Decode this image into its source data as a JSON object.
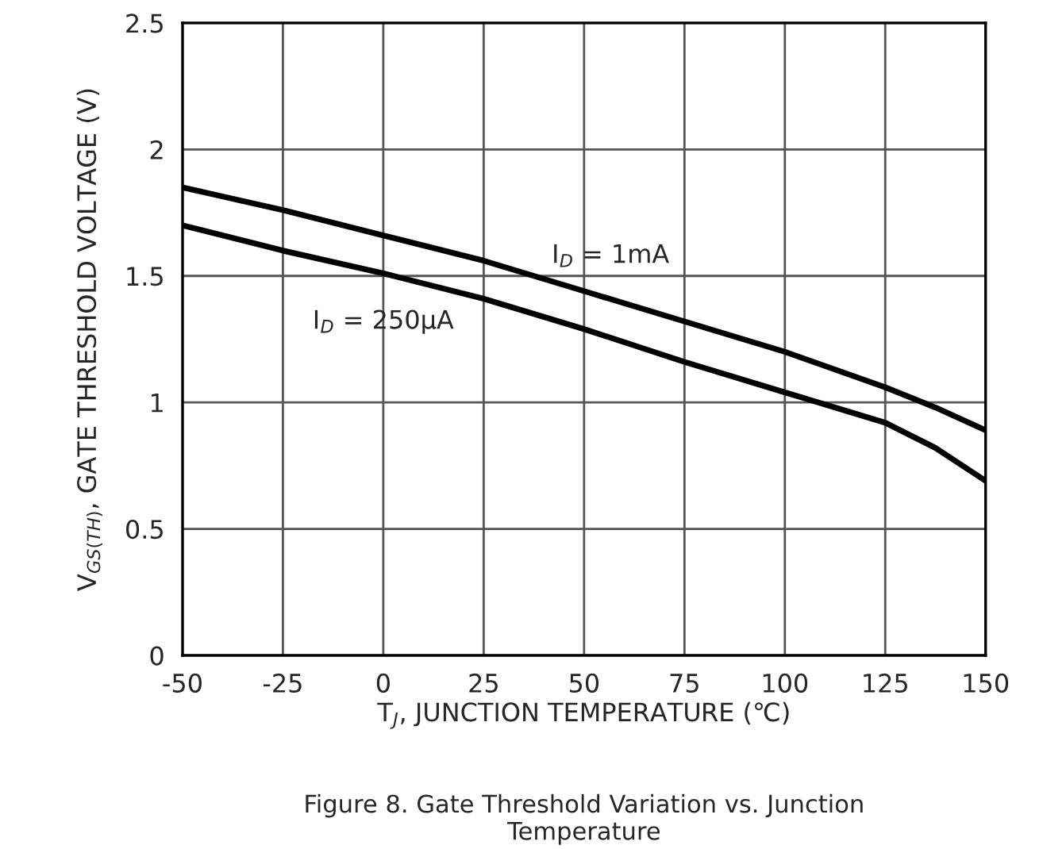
{
  "chart_data": {
    "type": "line",
    "xlabel": "T$_{J}$, JUNCTION TEMPERATURE (℃)",
    "ylabel": "V$_{GS(TH)}$, GATE THRESHOLD VOLTAGE (V)",
    "x": [
      -50,
      -25,
      0,
      25,
      50,
      75,
      100,
      125,
      137.5,
      150
    ],
    "series": [
      {
        "name": "I$_{D}$ = 1mA",
        "color": "#000000",
        "values": [
          1.85,
          1.76,
          1.66,
          1.56,
          1.44,
          1.32,
          1.2,
          1.06,
          0.98,
          0.89
        ]
      },
      {
        "name": "I$_{D}$ = 250µA",
        "color": "#000000",
        "values": [
          1.7,
          1.6,
          1.51,
          1.41,
          1.29,
          1.16,
          1.04,
          0.92,
          0.82,
          0.69
        ]
      }
    ],
    "xlim": [
      -50,
      150
    ],
    "xticks": [
      -50,
      -25,
      0,
      25,
      50,
      75,
      100,
      125,
      150
    ],
    "ylim": [
      0,
      2.5
    ],
    "yticks": [
      0,
      0.5,
      1,
      1.5,
      2,
      2.5
    ],
    "grid": true,
    "legend": false,
    "line_style": "solid",
    "marker": "none",
    "annotations": [
      "Figure 8. Gate Threshold Variation vs. Junction\nTemperature"
    ]
  }
}
